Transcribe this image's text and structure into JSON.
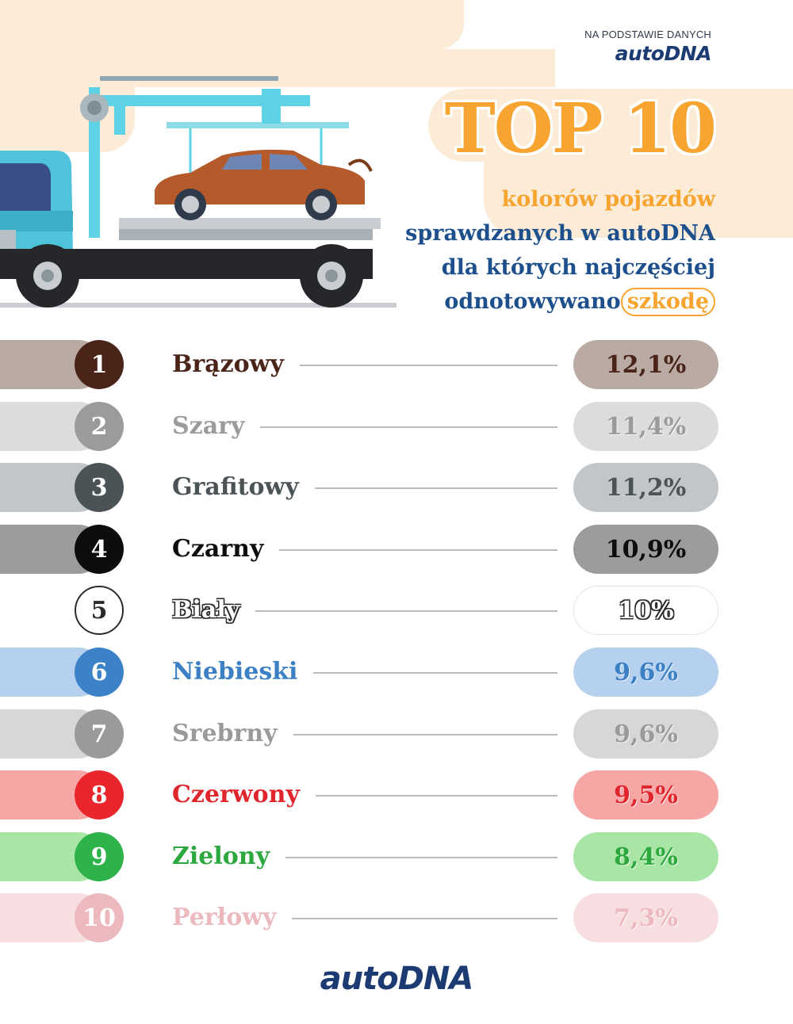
{
  "source": {
    "caption": "NA PODSTAWIE DANYCH",
    "logo": "autoDNA"
  },
  "header": {
    "title": "TOP 10",
    "subtitle_lines": [
      "kolorów pojazdów",
      "sprawdzanych w autoDNA",
      "dla których najczęściej"
    ],
    "subtitle_last_prefix": "odnotowywano",
    "subtitle_last_highlight": "szkodę"
  },
  "footer": {
    "logo": "autoDNA"
  },
  "colors": {
    "accent_orange": "#f7a530",
    "brand_navy": "#1d3b73",
    "subtitle_blue": "#1d4f8c"
  },
  "chart_data": {
    "type": "table",
    "title": "TOP 10",
    "value_unit": "%",
    "rows": [
      {
        "rank": "1",
        "name": "Brązowy",
        "value": 12.1,
        "label": "12,1%",
        "bar": "#b9aba3",
        "badge": "#4a2418",
        "text": "#4a2418",
        "pill": "#b9aba3"
      },
      {
        "rank": "2",
        "name": "Szary",
        "value": 11.4,
        "label": "11,4%",
        "bar": "#dcdcdc",
        "badge": "#9b9b9b",
        "text": "#9b9b9b",
        "pill": "#dcdcdc"
      },
      {
        "rank": "3",
        "name": "Grafitowy",
        "value": 11.2,
        "label": "11,2%",
        "bar": "#c3c6c8",
        "badge": "#4c5356",
        "text": "#4c5356",
        "pill": "#c3c6c8"
      },
      {
        "rank": "4",
        "name": "Czarny",
        "value": 10.9,
        "label": "10,9%",
        "bar": "#9c9c9c",
        "badge": "#0d0d0d",
        "text": "#0d0d0d",
        "pill": "#9c9c9c"
      },
      {
        "rank": "5",
        "name": "Biały",
        "value": 10,
        "label": "10%",
        "bar": "#ffffff",
        "badge": "#ffffff",
        "text": "#ffffff",
        "pill": "#ffffff"
      },
      {
        "rank": "6",
        "name": "Niebieski",
        "value": 9.6,
        "label": "9,6%",
        "bar": "#b5d1ef",
        "badge": "#3b82c9",
        "text": "#3b7fc4",
        "pill": "#b5d1ef"
      },
      {
        "rank": "7",
        "name": "Srebrny",
        "value": 9.6,
        "label": "9,6%",
        "bar": "#d7d7d7",
        "badge": "#9a9a9a",
        "text": "#9a9a9a",
        "pill": "#d7d7d7"
      },
      {
        "rank": "8",
        "name": "Czerwony",
        "value": 9.5,
        "label": "9,5%",
        "bar": "#f7a6a6",
        "badge": "#e9262c",
        "text": "#e0262c",
        "pill": "#f7a6a6"
      },
      {
        "rank": "9",
        "name": "Zielony",
        "value": 8.4,
        "label": "8,4%",
        "bar": "#a9e6a6",
        "badge": "#2db34a",
        "text": "#2da83f",
        "pill": "#a9e6a6"
      },
      {
        "rank": "10",
        "name": "Perłowy",
        "value": 7.3,
        "label": "7,3%",
        "bar": "#f7dfe1",
        "badge": "#ecb9bf",
        "text": "#ecb9bf",
        "pill": "#f7dfe1"
      }
    ]
  }
}
